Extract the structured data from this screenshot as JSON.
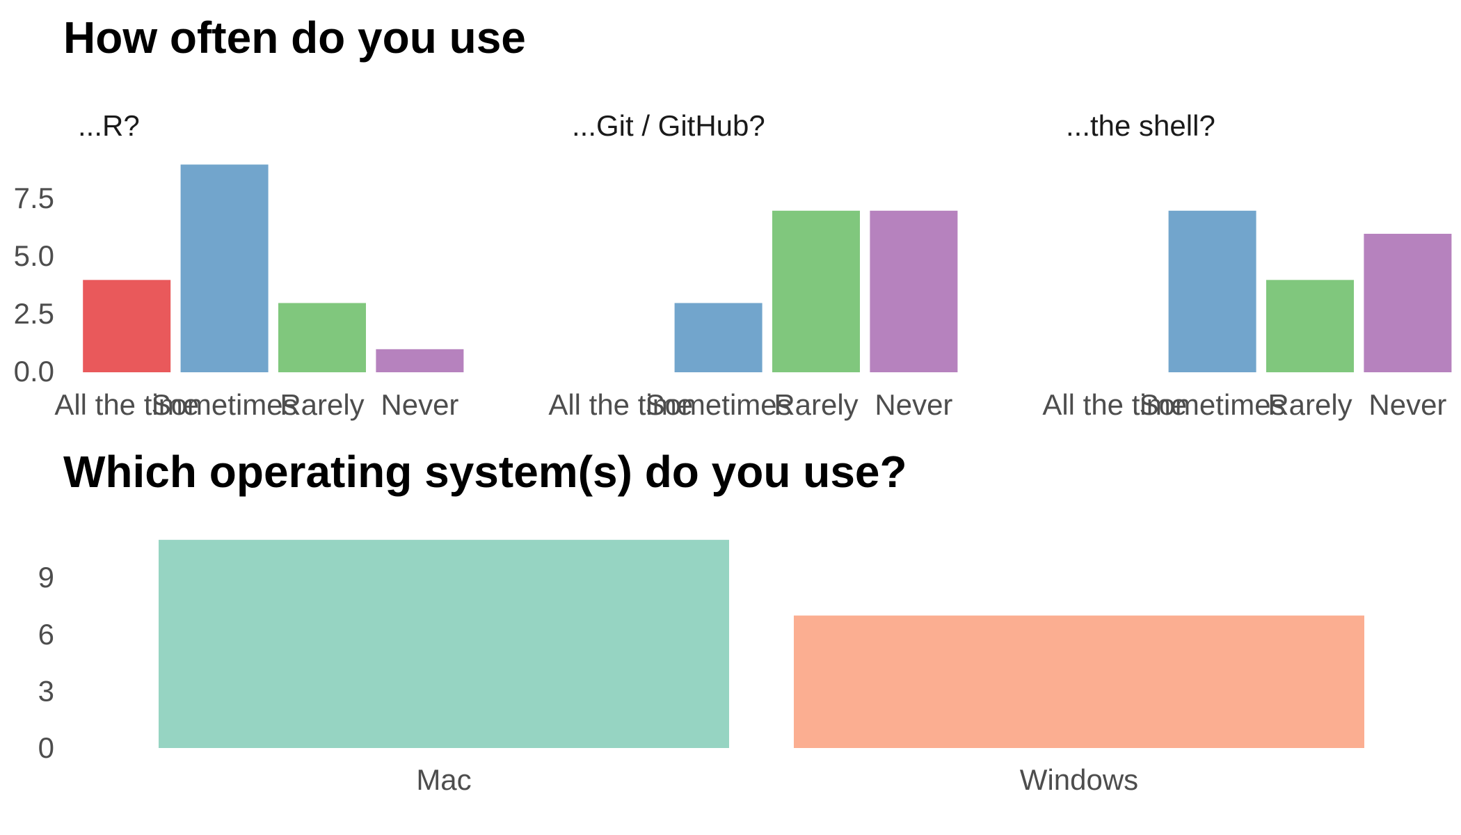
{
  "chart_data": [
    {
      "type": "bar",
      "title": "How often do you use",
      "categories": [
        "All the time",
        "Sometimes",
        "Rarely",
        "Never"
      ],
      "colors": [
        "#E9595B",
        "#72A5CC",
        "#80C77D",
        "#B682BE"
      ],
      "ylim": [
        0,
        9
      ],
      "yticks": [
        "0.0",
        "2.5",
        "5.0",
        "7.5"
      ],
      "grid": false,
      "legend": "none",
      "facets": [
        {
          "label": "...R?",
          "values": [
            4,
            9,
            3,
            1
          ]
        },
        {
          "label": "...Git / GitHub?",
          "values": [
            0,
            3,
            7,
            7
          ]
        },
        {
          "label": "...the shell?",
          "values": [
            0,
            7,
            4,
            6
          ]
        }
      ]
    },
    {
      "type": "bar",
      "title": "Which operating system(s) do you use?",
      "categories": [
        "Mac",
        "Windows"
      ],
      "values": [
        11,
        7
      ],
      "colors": [
        "#96D4C2",
        "#FBAE91"
      ],
      "ylim": [
        0,
        11
      ],
      "yticks": [
        "0",
        "3",
        "6",
        "9"
      ],
      "grid": false,
      "legend": "none"
    }
  ]
}
